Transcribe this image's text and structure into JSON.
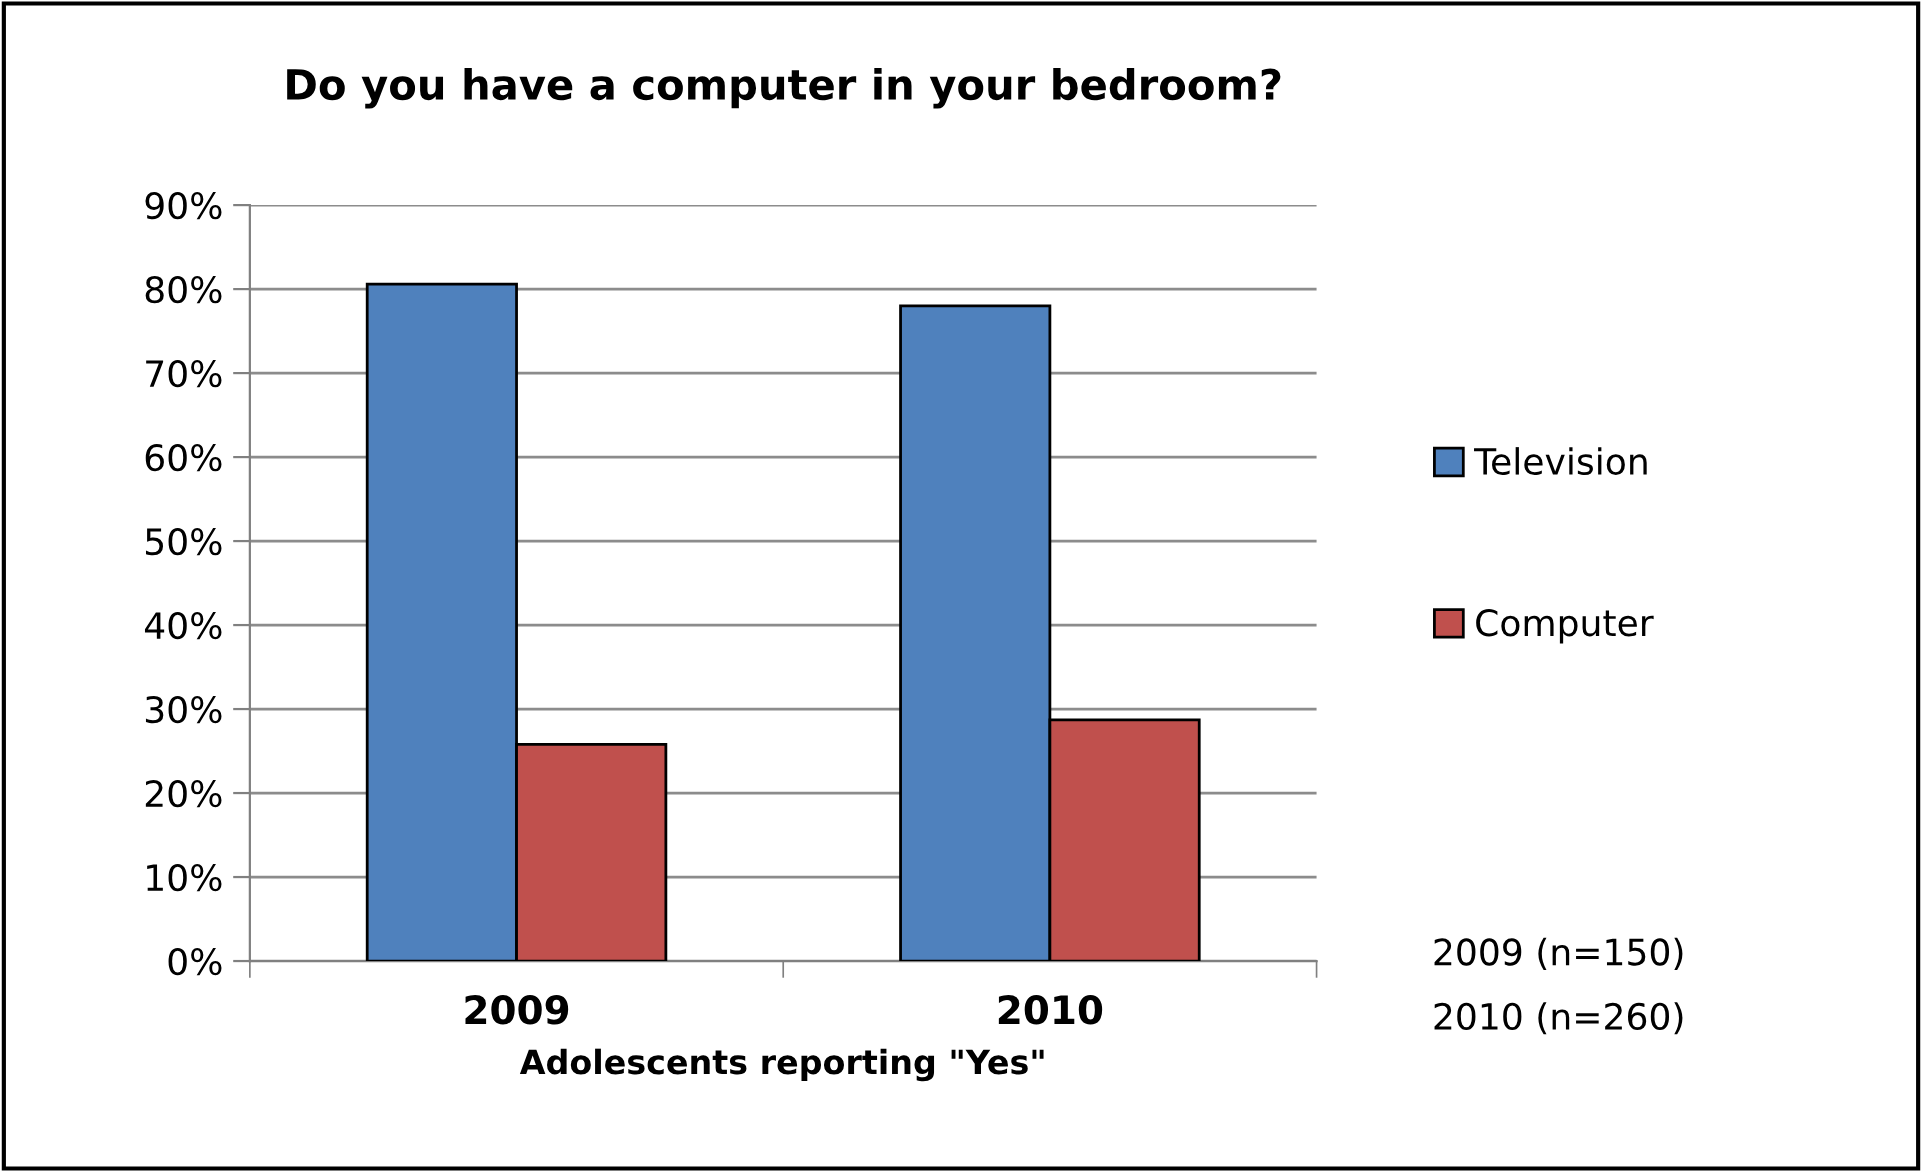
{
  "chart_data": {
    "type": "bar",
    "title": "Do you have a computer in your bedroom?",
    "xlabel": "Adolescents reporting \"Yes\"",
    "categories": [
      "2009",
      "2010"
    ],
    "series": [
      {
        "name": "Television",
        "color": "#4f81bd",
        "values": [
          0.806,
          0.78
        ]
      },
      {
        "name": "Computer",
        "color": "#c0504d",
        "values": [
          0.258,
          0.287
        ]
      }
    ],
    "ylim": [
      0,
      0.9
    ],
    "yticks": [
      {
        "value": 0,
        "label": "0%"
      },
      {
        "value": 0.1,
        "label": "10%"
      },
      {
        "value": 0.2,
        "label": "20%"
      },
      {
        "value": 0.3,
        "label": "30%"
      },
      {
        "value": 0.4,
        "label": "40%"
      },
      {
        "value": 0.5,
        "label": "50%"
      },
      {
        "value": 0.6,
        "label": "60%"
      },
      {
        "value": 0.7,
        "label": "70%"
      },
      {
        "value": 0.8,
        "label": "80%"
      },
      {
        "value": 0.9,
        "label": "90%"
      }
    ],
    "grid": "y",
    "legend": "right",
    "annotations": [
      "2009 (n=150)",
      "2010 (n=260)"
    ]
  }
}
